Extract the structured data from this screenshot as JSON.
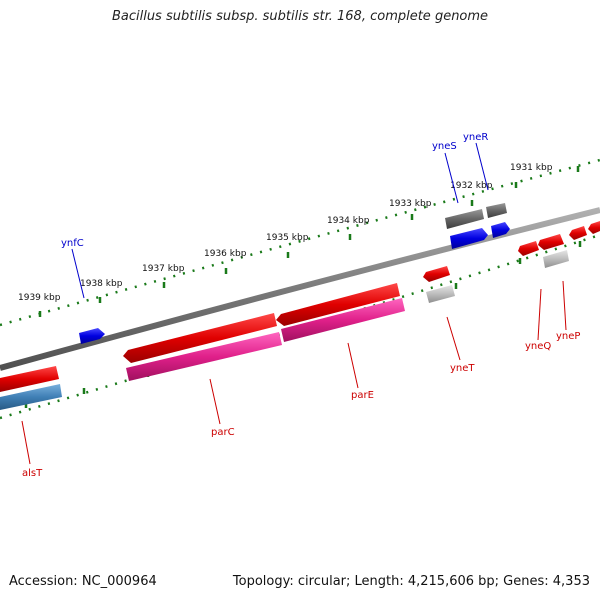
{
  "title": "Bacillus subtilis subsp. subtilis str. 168, complete genome",
  "footer": {
    "accession": "Accession: NC_000964",
    "summary": "Topology: circular; Length: 4,215,606 bp; Genes: 4,353"
  },
  "scale": {
    "ticks": [
      {
        "label": "1931 kbp"
      },
      {
        "label": "1932 kbp"
      },
      {
        "label": "1933 kbp"
      },
      {
        "label": "1934 kbp"
      },
      {
        "label": "1935 kbp"
      },
      {
        "label": "1936 kbp"
      },
      {
        "label": "1937 kbp"
      },
      {
        "label": "1938 kbp"
      },
      {
        "label": "1939 kbp"
      }
    ]
  },
  "genes": [
    {
      "name": "yneS",
      "color": "#0000cc"
    },
    {
      "name": "yneR",
      "color": "#0000cc"
    },
    {
      "name": "ynfC",
      "color": "#0000cc"
    },
    {
      "name": "yneT",
      "color": "#cc0000"
    },
    {
      "name": "yneQ",
      "color": "#cc0000"
    },
    {
      "name": "yneP",
      "color": "#cc0000"
    },
    {
      "name": "parE",
      "color": "#cc0000"
    },
    {
      "name": "parC",
      "color": "#cc0000"
    },
    {
      "name": "alsT",
      "color": "#cc0000"
    }
  ],
  "colors": {
    "backbone": "#7a7a7a",
    "tick_dots": "#1a7a1a",
    "forward_gene": "#0000ee",
    "reverse_gene": "#ee0000",
    "cds_pink": "#e0208a",
    "cds_steel": "#3f7fb5",
    "pseudo_gray": "#666666",
    "pseudo_light": "#bdbdbd"
  }
}
